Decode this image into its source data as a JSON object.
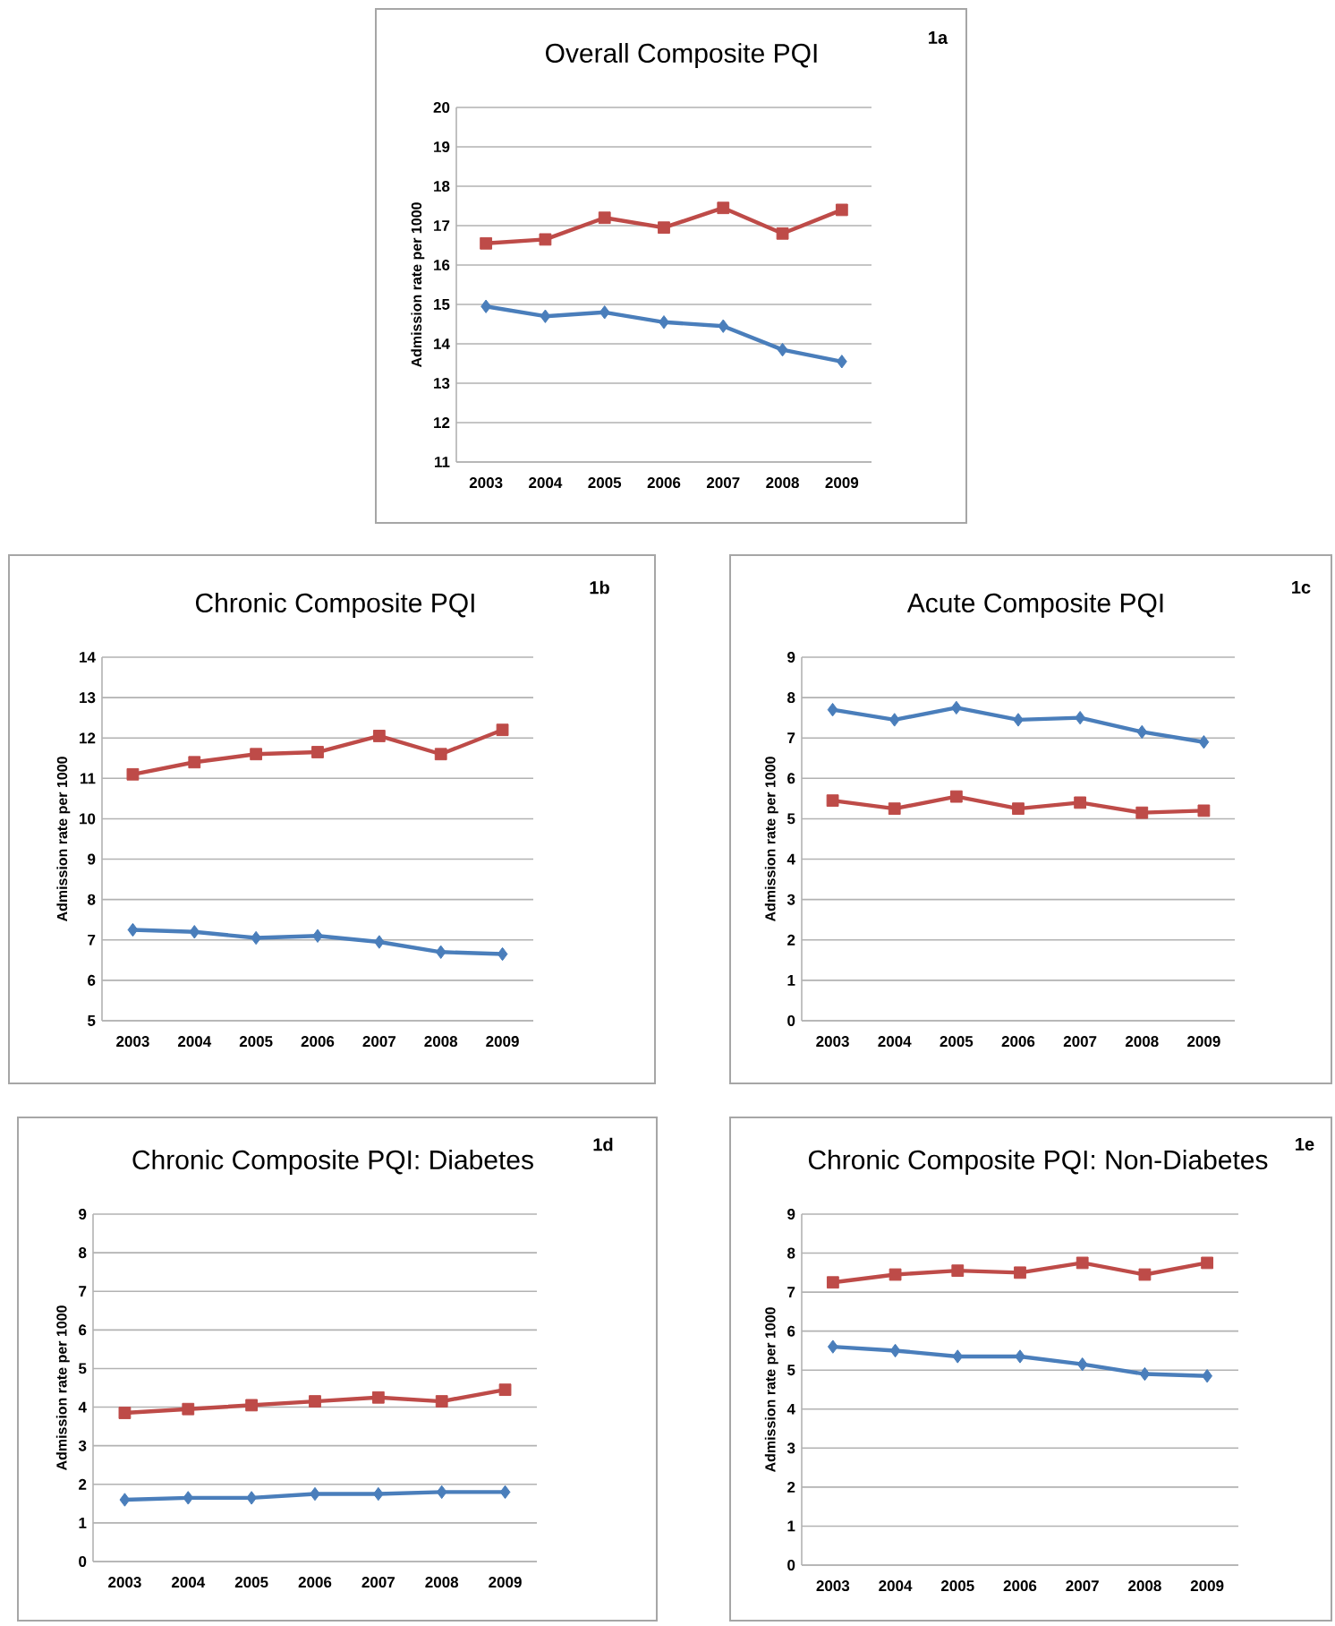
{
  "chart_data": [
    {
      "type": "line",
      "title": "Overall Composite PQI",
      "ylabel": "Admission rate  per 1000",
      "annotations": [
        "1a"
      ],
      "categories": [
        "2003",
        "2004",
        "2005",
        "2006",
        "2007",
        "2008",
        "2009"
      ],
      "ylim": [
        11,
        20
      ],
      "yticks": [
        11,
        12,
        13,
        14,
        15,
        16,
        17,
        18,
        19,
        20
      ],
      "grid": "y",
      "line_style": "solid",
      "series": [
        {
          "color": "#4a7ebb",
          "marker": "diamond",
          "values": [
            14.95,
            14.7,
            14.8,
            14.55,
            14.45,
            13.85,
            13.55
          ]
        },
        {
          "color": "#be4b48",
          "marker": "square",
          "values": [
            16.55,
            16.65,
            17.2,
            16.95,
            17.45,
            16.8,
            17.4
          ]
        }
      ]
    },
    {
      "type": "line",
      "title": "Chronic Composite PQI",
      "ylabel": "Admission rate per 1000",
      "annotations": [
        "1b"
      ],
      "categories": [
        "2003",
        "2004",
        "2005",
        "2006",
        "2007",
        "2008",
        "2009"
      ],
      "ylim": [
        5,
        14
      ],
      "yticks": [
        5,
        6,
        7,
        8,
        9,
        10,
        11,
        12,
        13,
        14
      ],
      "grid": "y",
      "line_style": "solid",
      "series": [
        {
          "color": "#4a7ebb",
          "marker": "diamond",
          "values": [
            7.25,
            7.2,
            7.05,
            7.1,
            6.95,
            6.7,
            6.65
          ]
        },
        {
          "color": "#be4b48",
          "marker": "square",
          "values": [
            11.1,
            11.4,
            11.6,
            11.65,
            12.05,
            11.6,
            12.2
          ]
        }
      ]
    },
    {
      "type": "line",
      "title": "Acute Composite PQI",
      "ylabel": "Admission rate per 1000",
      "annotations": [
        "1c"
      ],
      "categories": [
        "2003",
        "2004",
        "2005",
        "2006",
        "2007",
        "2008",
        "2009"
      ],
      "ylim": [
        0,
        9
      ],
      "yticks": [
        0,
        1,
        2,
        3,
        4,
        5,
        6,
        7,
        8,
        9
      ],
      "grid": "y",
      "line_style": "solid",
      "series": [
        {
          "color": "#4a7ebb",
          "marker": "diamond",
          "values": [
            7.7,
            7.45,
            7.75,
            7.45,
            7.5,
            7.15,
            6.9
          ]
        },
        {
          "color": "#be4b48",
          "marker": "square",
          "values": [
            5.45,
            5.25,
            5.55,
            5.25,
            5.4,
            5.15,
            5.2
          ]
        }
      ]
    },
    {
      "type": "line",
      "title": "Chronic Composite PQI: Diabetes",
      "ylabel": "Admission rate per 1000",
      "annotations": [
        "1d"
      ],
      "categories": [
        "2003",
        "2004",
        "2005",
        "2006",
        "2007",
        "2008",
        "2009"
      ],
      "ylim": [
        0,
        9
      ],
      "yticks": [
        0,
        1,
        2,
        3,
        4,
        5,
        6,
        7,
        8,
        9
      ],
      "grid": "y",
      "line_style": "solid",
      "series": [
        {
          "color": "#4a7ebb",
          "marker": "diamond",
          "values": [
            1.6,
            1.65,
            1.65,
            1.75,
            1.75,
            1.8,
            1.8
          ]
        },
        {
          "color": "#be4b48",
          "marker": "square",
          "values": [
            3.85,
            3.95,
            4.05,
            4.15,
            4.25,
            4.15,
            4.45
          ]
        }
      ]
    },
    {
      "type": "line",
      "title": "Chronic Composite PQI: Non-Diabetes",
      "ylabel": "Admission rate per 1000",
      "annotations": [
        "1e"
      ],
      "categories": [
        "2003",
        "2004",
        "2005",
        "2006",
        "2007",
        "2008",
        "2009"
      ],
      "ylim": [
        0,
        9
      ],
      "yticks": [
        0,
        1,
        2,
        3,
        4,
        5,
        6,
        7,
        8,
        9
      ],
      "grid": "y",
      "line_style": "solid",
      "series": [
        {
          "color": "#4a7ebb",
          "marker": "diamond",
          "values": [
            5.6,
            5.5,
            5.35,
            5.35,
            5.15,
            4.9,
            4.85
          ]
        },
        {
          "color": "#be4b48",
          "marker": "square",
          "values": [
            7.25,
            7.45,
            7.55,
            7.5,
            7.75,
            7.45,
            7.75
          ]
        }
      ]
    }
  ]
}
